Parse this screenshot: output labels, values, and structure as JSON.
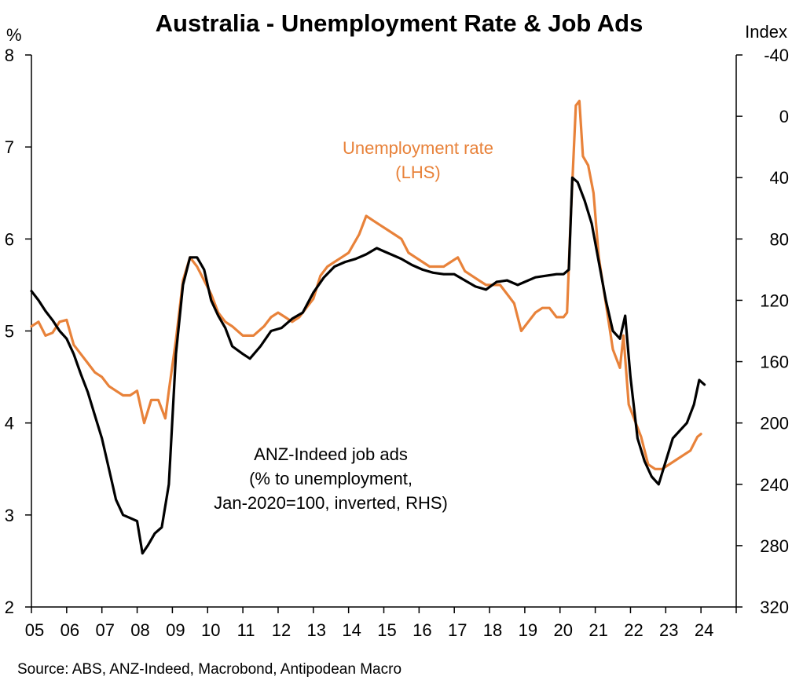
{
  "chart_data": {
    "type": "line",
    "title": "Australia - Unemployment Rate & Job Ads",
    "left_axis": {
      "unit": "%",
      "range": [
        2,
        8
      ],
      "ticks": [
        "2",
        "3",
        "4",
        "5",
        "6",
        "7",
        "8"
      ]
    },
    "right_axis": {
      "unit": "Index",
      "range": [
        -40,
        320
      ],
      "inverted": true,
      "ticks": [
        "-40",
        "0",
        "40",
        "80",
        "120",
        "160",
        "200",
        "240",
        "280",
        "320"
      ]
    },
    "x_axis": {
      "range": [
        2005,
        2025
      ],
      "ticks": [
        "05",
        "06",
        "07",
        "08",
        "09",
        "10",
        "11",
        "12",
        "13",
        "14",
        "15",
        "16",
        "17",
        "18",
        "19",
        "20",
        "21",
        "22",
        "23",
        "24"
      ]
    },
    "grid": false,
    "legend": "none",
    "colors": {
      "unemployment": "#E8823A",
      "job_ads": "#000000"
    },
    "series": [
      {
        "name": "Unemployment rate (LHS)",
        "axis": "left",
        "color": "#E8823A",
        "points": [
          [
            2005.0,
            5.05
          ],
          [
            2005.2,
            5.1
          ],
          [
            2005.4,
            4.95
          ],
          [
            2005.6,
            4.98
          ],
          [
            2005.8,
            5.1
          ],
          [
            2006.0,
            5.12
          ],
          [
            2006.2,
            4.85
          ],
          [
            2006.4,
            4.75
          ],
          [
            2006.6,
            4.65
          ],
          [
            2006.8,
            4.55
          ],
          [
            2007.0,
            4.5
          ],
          [
            2007.2,
            4.4
          ],
          [
            2007.4,
            4.35
          ],
          [
            2007.6,
            4.3
          ],
          [
            2007.8,
            4.3
          ],
          [
            2008.0,
            4.35
          ],
          [
            2008.2,
            4.0
          ],
          [
            2008.4,
            4.25
          ],
          [
            2008.6,
            4.25
          ],
          [
            2008.8,
            4.05
          ],
          [
            2008.9,
            4.35
          ],
          [
            2009.1,
            4.9
          ],
          [
            2009.3,
            5.55
          ],
          [
            2009.5,
            5.8
          ],
          [
            2009.7,
            5.7
          ],
          [
            2009.9,
            5.55
          ],
          [
            2010.1,
            5.4
          ],
          [
            2010.3,
            5.2
          ],
          [
            2010.5,
            5.1
          ],
          [
            2010.7,
            5.05
          ],
          [
            2011.0,
            4.95
          ],
          [
            2011.3,
            4.95
          ],
          [
            2011.6,
            5.05
          ],
          [
            2011.8,
            5.15
          ],
          [
            2012.0,
            5.2
          ],
          [
            2012.2,
            5.15
          ],
          [
            2012.4,
            5.1
          ],
          [
            2012.6,
            5.15
          ],
          [
            2012.8,
            5.25
          ],
          [
            2013.0,
            5.35
          ],
          [
            2013.2,
            5.6
          ],
          [
            2013.4,
            5.7
          ],
          [
            2013.6,
            5.75
          ],
          [
            2013.8,
            5.8
          ],
          [
            2014.0,
            5.85
          ],
          [
            2014.3,
            6.05
          ],
          [
            2014.5,
            6.25
          ],
          [
            2014.7,
            6.2
          ],
          [
            2014.9,
            6.15
          ],
          [
            2015.1,
            6.1
          ],
          [
            2015.3,
            6.05
          ],
          [
            2015.5,
            6.0
          ],
          [
            2015.7,
            5.85
          ],
          [
            2015.9,
            5.8
          ],
          [
            2016.1,
            5.75
          ],
          [
            2016.3,
            5.7
          ],
          [
            2016.5,
            5.7
          ],
          [
            2016.7,
            5.7
          ],
          [
            2016.9,
            5.75
          ],
          [
            2017.1,
            5.8
          ],
          [
            2017.3,
            5.65
          ],
          [
            2017.5,
            5.6
          ],
          [
            2017.7,
            5.55
          ],
          [
            2017.9,
            5.5
          ],
          [
            2018.1,
            5.5
          ],
          [
            2018.3,
            5.5
          ],
          [
            2018.5,
            5.4
          ],
          [
            2018.7,
            5.3
          ],
          [
            2018.9,
            5.0
          ],
          [
            2019.1,
            5.1
          ],
          [
            2019.3,
            5.2
          ],
          [
            2019.5,
            5.25
          ],
          [
            2019.7,
            5.25
          ],
          [
            2019.9,
            5.15
          ],
          [
            2020.1,
            5.15
          ],
          [
            2020.2,
            5.2
          ],
          [
            2020.3,
            6.2
          ],
          [
            2020.45,
            7.45
          ],
          [
            2020.55,
            7.5
          ],
          [
            2020.65,
            6.9
          ],
          [
            2020.8,
            6.8
          ],
          [
            2020.95,
            6.5
          ],
          [
            2021.1,
            5.8
          ],
          [
            2021.3,
            5.3
          ],
          [
            2021.5,
            4.8
          ],
          [
            2021.7,
            4.6
          ],
          [
            2021.8,
            4.95
          ],
          [
            2021.95,
            4.2
          ],
          [
            2022.1,
            4.05
          ],
          [
            2022.3,
            3.85
          ],
          [
            2022.5,
            3.55
          ],
          [
            2022.7,
            3.5
          ],
          [
            2022.9,
            3.5
          ],
          [
            2023.1,
            3.55
          ],
          [
            2023.3,
            3.6
          ],
          [
            2023.5,
            3.65
          ],
          [
            2023.7,
            3.7
          ],
          [
            2023.9,
            3.85
          ],
          [
            2024.0,
            3.88
          ]
        ]
      },
      {
        "name": "ANZ-Indeed job ads (% to unemployment, Jan-2020=100, inverted, RHS)",
        "axis": "right",
        "color": "#000000",
        "points": [
          [
            2005.0,
            114
          ],
          [
            2005.2,
            120
          ],
          [
            2005.4,
            127
          ],
          [
            2005.6,
            133
          ],
          [
            2005.8,
            140
          ],
          [
            2006.0,
            145
          ],
          [
            2006.2,
            155
          ],
          [
            2006.4,
            168
          ],
          [
            2006.6,
            180
          ],
          [
            2006.8,
            195
          ],
          [
            2007.0,
            210
          ],
          [
            2007.2,
            230
          ],
          [
            2007.4,
            250
          ],
          [
            2007.6,
            260
          ],
          [
            2007.8,
            262
          ],
          [
            2008.0,
            264
          ],
          [
            2008.15,
            285
          ],
          [
            2008.3,
            280
          ],
          [
            2008.5,
            272
          ],
          [
            2008.7,
            268
          ],
          [
            2008.9,
            240
          ],
          [
            2009.1,
            155
          ],
          [
            2009.3,
            110
          ],
          [
            2009.5,
            92
          ],
          [
            2009.7,
            92
          ],
          [
            2009.9,
            100
          ],
          [
            2010.1,
            120
          ],
          [
            2010.3,
            130
          ],
          [
            2010.5,
            138
          ],
          [
            2010.7,
            150
          ],
          [
            2011.0,
            155
          ],
          [
            2011.2,
            158
          ],
          [
            2011.5,
            150
          ],
          [
            2011.8,
            140
          ],
          [
            2012.1,
            138
          ],
          [
            2012.4,
            132
          ],
          [
            2012.7,
            128
          ],
          [
            2013.0,
            115
          ],
          [
            2013.3,
            105
          ],
          [
            2013.6,
            98
          ],
          [
            2013.9,
            95
          ],
          [
            2014.2,
            93
          ],
          [
            2014.5,
            90
          ],
          [
            2014.8,
            86
          ],
          [
            2015.0,
            88
          ],
          [
            2015.2,
            90
          ],
          [
            2015.5,
            93
          ],
          [
            2015.8,
            97
          ],
          [
            2016.1,
            100
          ],
          [
            2016.4,
            102
          ],
          [
            2016.7,
            103
          ],
          [
            2017.0,
            103
          ],
          [
            2017.3,
            107
          ],
          [
            2017.6,
            111
          ],
          [
            2017.9,
            113
          ],
          [
            2018.2,
            108
          ],
          [
            2018.5,
            107
          ],
          [
            2018.8,
            110
          ],
          [
            2019.0,
            108
          ],
          [
            2019.3,
            105
          ],
          [
            2019.6,
            104
          ],
          [
            2019.9,
            103
          ],
          [
            2020.1,
            103
          ],
          [
            2020.25,
            100
          ],
          [
            2020.35,
            40
          ],
          [
            2020.5,
            43
          ],
          [
            2020.7,
            55
          ],
          [
            2020.9,
            70
          ],
          [
            2021.1,
            95
          ],
          [
            2021.3,
            120
          ],
          [
            2021.5,
            140
          ],
          [
            2021.7,
            145
          ],
          [
            2021.85,
            130
          ],
          [
            2022.0,
            170
          ],
          [
            2022.2,
            210
          ],
          [
            2022.4,
            225
          ],
          [
            2022.6,
            235
          ],
          [
            2022.8,
            240
          ],
          [
            2023.0,
            225
          ],
          [
            2023.2,
            210
          ],
          [
            2023.4,
            205
          ],
          [
            2023.6,
            200
          ],
          [
            2023.8,
            188
          ],
          [
            2023.95,
            172
          ],
          [
            2024.1,
            175
          ]
        ]
      }
    ],
    "annotations": [
      {
        "lines": [
          "Unemployment rate",
          "(LHS)"
        ],
        "color": "#E8823A",
        "anchor": [
          2011.3,
          7.0
        ]
      },
      {
        "lines": [
          "ANZ-Indeed job ads",
          "(% to unemployment,",
          "Jan-2020=100, inverted, RHS)"
        ],
        "color": "#000000",
        "anchor": [
          2005.8,
          3.55
        ]
      }
    ],
    "source": "Source: ABS, ANZ-Indeed, Macrobond, Antipodean Macro"
  }
}
